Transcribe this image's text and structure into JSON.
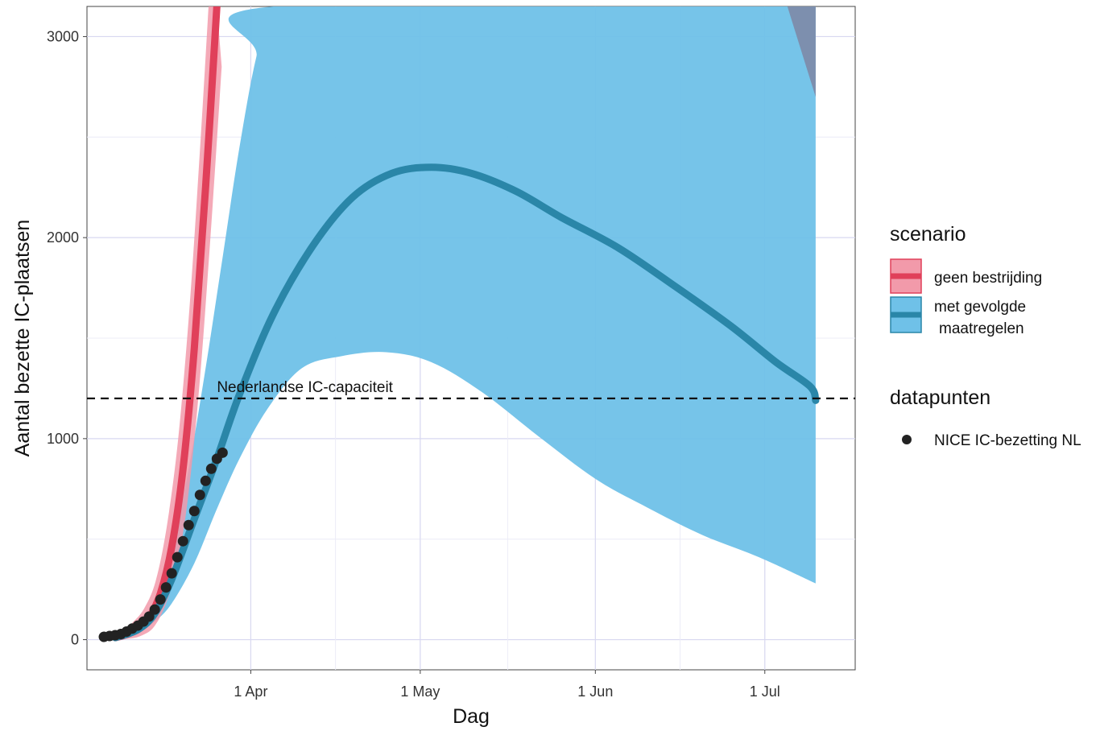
{
  "chart_data": {
    "type": "line",
    "title": "",
    "xlabel": "Dag",
    "ylabel": "Aantal bezette IC-plaatsen",
    "x_ticks": [
      {
        "date": "2020-04-01",
        "label": "1 Apr"
      },
      {
        "date": "2020-05-01",
        "label": "1 May"
      },
      {
        "date": "2020-06-01",
        "label": "1 Jun"
      },
      {
        "date": "2020-07-01",
        "label": "1 Jul"
      }
    ],
    "y_ticks": [
      0,
      1000,
      2000,
      3000
    ],
    "xlim": [
      "2020-03-03",
      "2020-07-17"
    ],
    "ylim": [
      -150,
      3150
    ],
    "grid": true,
    "legend_position": "right",
    "colors": {
      "geen_line": "#e0405a",
      "geen_band": "#f29aaa",
      "met_line": "#2a86a8",
      "met_band": "#6fc1e8",
      "band_overlap": "#7d8fae",
      "points": "#222222"
    },
    "reference_line": {
      "y": 1200,
      "label": "Nederlandse IC-capaciteit"
    },
    "series": [
      {
        "name": "geen bestrijding",
        "line": [
          {
            "x": "2020-03-08",
            "y": 10
          },
          {
            "x": "2020-03-10",
            "y": 25
          },
          {
            "x": "2020-03-12",
            "y": 55
          },
          {
            "x": "2020-03-14",
            "y": 110
          },
          {
            "x": "2020-03-16",
            "y": 230
          },
          {
            "x": "2020-03-18",
            "y": 460
          },
          {
            "x": "2020-03-20",
            "y": 850
          },
          {
            "x": "2020-03-22",
            "y": 1450
          },
          {
            "x": "2020-03-24",
            "y": 2250
          },
          {
            "x": "2020-03-26",
            "y": 3150
          }
        ],
        "band_half_width": [
          {
            "x": "2020-03-08",
            "y": 5
          },
          {
            "x": "2020-03-16",
            "y": 60
          },
          {
            "x": "2020-03-20",
            "y": 150
          },
          {
            "x": "2020-03-26",
            "y": 300
          }
        ]
      },
      {
        "name": "met gevolgde maatregelen",
        "line": [
          {
            "x": "2020-03-08",
            "y": 10
          },
          {
            "x": "2020-03-12",
            "y": 50
          },
          {
            "x": "2020-03-15",
            "y": 130
          },
          {
            "x": "2020-03-18",
            "y": 300
          },
          {
            "x": "2020-03-22",
            "y": 600
          },
          {
            "x": "2020-03-26",
            "y": 900
          },
          {
            "x": "2020-03-30",
            "y": 1220
          },
          {
            "x": "2020-04-05",
            "y": 1620
          },
          {
            "x": "2020-04-12",
            "y": 1960
          },
          {
            "x": "2020-04-19",
            "y": 2200
          },
          {
            "x": "2020-04-26",
            "y": 2320
          },
          {
            "x": "2020-05-03",
            "y": 2350
          },
          {
            "x": "2020-05-10",
            "y": 2320
          },
          {
            "x": "2020-05-18",
            "y": 2230
          },
          {
            "x": "2020-05-26",
            "y": 2100
          },
          {
            "x": "2020-06-05",
            "y": 1950
          },
          {
            "x": "2020-06-15",
            "y": 1760
          },
          {
            "x": "2020-06-25",
            "y": 1560
          },
          {
            "x": "2020-07-03",
            "y": 1380
          },
          {
            "x": "2020-07-09",
            "y": 1260
          },
          {
            "x": "2020-07-10",
            "y": 1190
          }
        ],
        "band_upper": [
          {
            "x": "2020-03-08",
            "y": 12
          },
          {
            "x": "2020-03-12",
            "y": 70
          },
          {
            "x": "2020-03-15",
            "y": 190
          },
          {
            "x": "2020-03-18",
            "y": 450
          },
          {
            "x": "2020-03-21",
            "y": 850
          },
          {
            "x": "2020-03-24",
            "y": 1350
          },
          {
            "x": "2020-03-27",
            "y": 1900
          },
          {
            "x": "2020-03-30",
            "y": 2450
          },
          {
            "x": "2020-04-02",
            "y": 2900
          },
          {
            "x": "2020-04-05",
            "y": 3150
          },
          {
            "x": "2020-07-10",
            "y": 3150
          }
        ],
        "band_lower": [
          {
            "x": "2020-03-08",
            "y": 8
          },
          {
            "x": "2020-03-12",
            "y": 35
          },
          {
            "x": "2020-03-15",
            "y": 90
          },
          {
            "x": "2020-03-18",
            "y": 180
          },
          {
            "x": "2020-03-22",
            "y": 380
          },
          {
            "x": "2020-03-26",
            "y": 650
          },
          {
            "x": "2020-03-30",
            "y": 900
          },
          {
            "x": "2020-04-04",
            "y": 1150
          },
          {
            "x": "2020-04-10",
            "y": 1350
          },
          {
            "x": "2020-04-17",
            "y": 1410
          },
          {
            "x": "2020-04-25",
            "y": 1430
          },
          {
            "x": "2020-05-03",
            "y": 1380
          },
          {
            "x": "2020-05-12",
            "y": 1230
          },
          {
            "x": "2020-05-22",
            "y": 1010
          },
          {
            "x": "2020-06-01",
            "y": 800
          },
          {
            "x": "2020-06-10",
            "y": 660
          },
          {
            "x": "2020-06-20",
            "y": 520
          },
          {
            "x": "2020-06-30",
            "y": 410
          },
          {
            "x": "2020-07-10",
            "y": 280
          }
        ]
      },
      {
        "name": "NICE IC-bezetting NL",
        "kind": "points",
        "points": [
          {
            "x": "2020-03-06",
            "y": 14
          },
          {
            "x": "2020-03-07",
            "y": 18
          },
          {
            "x": "2020-03-08",
            "y": 22
          },
          {
            "x": "2020-03-09",
            "y": 28
          },
          {
            "x": "2020-03-10",
            "y": 40
          },
          {
            "x": "2020-03-11",
            "y": 55
          },
          {
            "x": "2020-03-12",
            "y": 70
          },
          {
            "x": "2020-03-13",
            "y": 90
          },
          {
            "x": "2020-03-14",
            "y": 115
          },
          {
            "x": "2020-03-15",
            "y": 150
          },
          {
            "x": "2020-03-16",
            "y": 200
          },
          {
            "x": "2020-03-17",
            "y": 260
          },
          {
            "x": "2020-03-18",
            "y": 330
          },
          {
            "x": "2020-03-19",
            "y": 410
          },
          {
            "x": "2020-03-20",
            "y": 490
          },
          {
            "x": "2020-03-21",
            "y": 570
          },
          {
            "x": "2020-03-22",
            "y": 640
          },
          {
            "x": "2020-03-23",
            "y": 720
          },
          {
            "x": "2020-03-24",
            "y": 790
          },
          {
            "x": "2020-03-25",
            "y": 850
          },
          {
            "x": "2020-03-26",
            "y": 900
          },
          {
            "x": "2020-03-27",
            "y": 930
          }
        ]
      }
    ]
  },
  "legend": {
    "scenario_title": "scenario",
    "scenario_items": [
      {
        "label_lines": [
          "geen bestrijding"
        ],
        "key": "geen"
      },
      {
        "label_lines": [
          "met gevolgde",
          "maatregelen"
        ],
        "key": "met"
      }
    ],
    "datapunten_title": "datapunten",
    "datapunten_items": [
      {
        "label": "NICE IC-bezetting NL"
      }
    ]
  }
}
